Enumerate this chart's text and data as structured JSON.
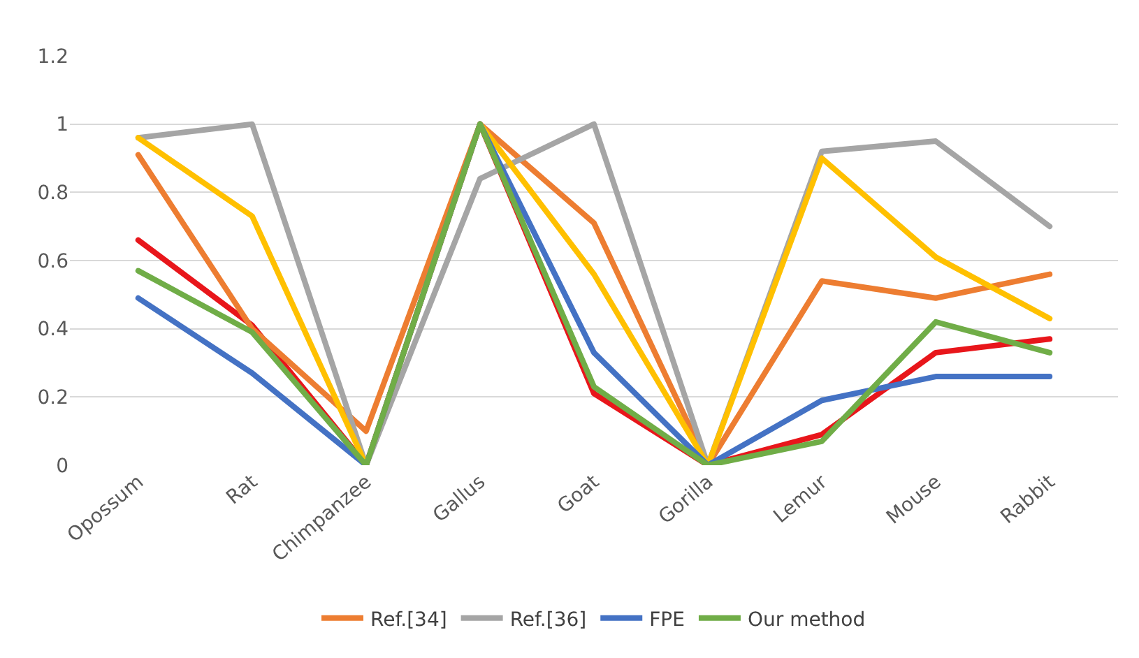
{
  "chart_data": {
    "type": "line",
    "categories": [
      "Opossum",
      "Rat",
      "Chimpanzee",
      "Gallus",
      "Goat",
      "Gorilla",
      "Lemur",
      "Mouse",
      "Rabbit"
    ],
    "series": [
      {
        "color": "#e8161b",
        "values": [
          0.66,
          0.41,
          0,
          1.0,
          0.21,
          0,
          0.09,
          0.33,
          0.37
        ]
      },
      {
        "name": "Ref.[34]",
        "color": "#ed7d31",
        "values": [
          0.91,
          0.4,
          0.1,
          1.0,
          0.71,
          0,
          0.54,
          0.49,
          0.56
        ]
      },
      {
        "name": "Ref.[36]",
        "color": "#a5a5a5",
        "values": [
          0.96,
          1.0,
          0,
          0.84,
          1.0,
          0,
          0.92,
          0.95,
          0.7
        ]
      },
      {
        "color": "#ffc000",
        "values": [
          0.96,
          0.73,
          0,
          1.0,
          0.56,
          0,
          0.9,
          0.61,
          0.43
        ]
      },
      {
        "name": "FPE",
        "color": "#4472c4",
        "values": [
          0.49,
          0.27,
          0,
          1.0,
          0.33,
          0,
          0.19,
          0.26,
          0.26
        ]
      },
      {
        "name": "Our method",
        "color": "#70ad47",
        "values": [
          0.57,
          0.39,
          0,
          1.0,
          0.23,
          0,
          0.07,
          0.42,
          0.33
        ]
      }
    ],
    "ylim": [
      0,
      1.2
    ],
    "yticks": [
      0,
      0.2,
      0.4,
      0.6,
      0.8,
      1,
      1.2
    ],
    "grid": "y",
    "legend": "bottom",
    "marker": "none",
    "line_style": "solid"
  }
}
